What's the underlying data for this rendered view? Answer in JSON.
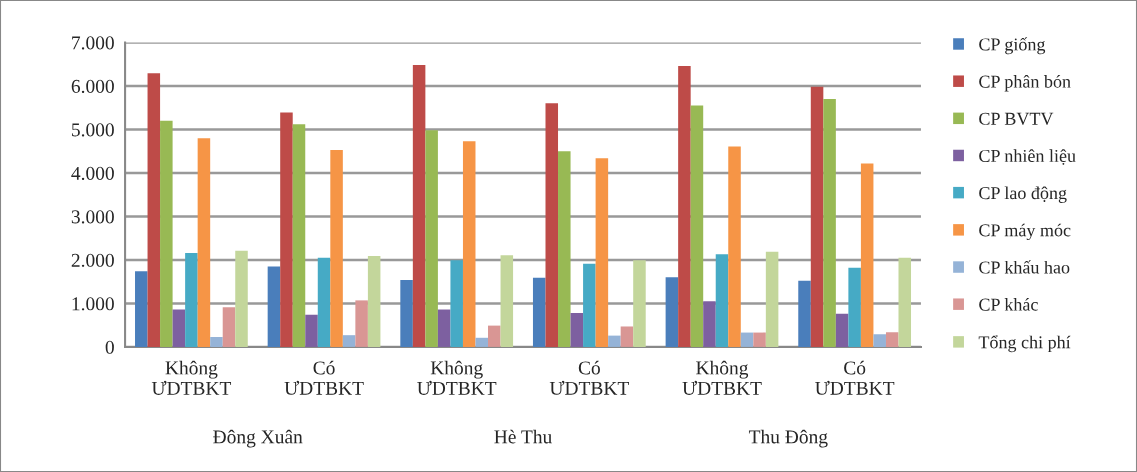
{
  "chart_data": {
    "type": "bar",
    "categories": [
      "Không\nƯDTBKT",
      "Có\nƯDTBKT",
      "Không\nƯDTBKT",
      "Có\nƯDTBKT",
      "Không\nƯDTBKT",
      "Có\nƯDTBKT"
    ],
    "annotations": [
      "Đông Xuân",
      "Hè Thu",
      "Thu Đông"
    ],
    "series": [
      {
        "name": "CP giống",
        "color": "#4a7ebb",
        "values": [
          1740,
          1850,
          1540,
          1590,
          1600,
          1520
        ]
      },
      {
        "name": "CP phân bón",
        "color": "#be4b48",
        "values": [
          6290,
          5390,
          6480,
          5600,
          6460,
          5980
        ]
      },
      {
        "name": "CP BVTV",
        "color": "#98b954",
        "values": [
          5200,
          5120,
          4980,
          4500,
          5550,
          5700
        ]
      },
      {
        "name": "CP nhiên liệu",
        "color": "#7d60a0",
        "values": [
          860,
          740,
          860,
          780,
          1050,
          760
        ]
      },
      {
        "name": "CP lao động",
        "color": "#46aac5",
        "values": [
          2160,
          2050,
          1990,
          1910,
          2130,
          1820
        ]
      },
      {
        "name": "CP máy móc",
        "color": "#f69546",
        "values": [
          4800,
          4530,
          4730,
          4340,
          4610,
          4220
        ]
      },
      {
        "name": "CP khấu hao",
        "color": "#95b3d7",
        "values": [
          230,
          270,
          210,
          260,
          330,
          290
        ]
      },
      {
        "name": "CP khác",
        "color": "#d99694",
        "values": [
          910,
          1070,
          490,
          470,
          330,
          340
        ]
      },
      {
        "name": "Tổng chi phí",
        "color": "#c3d69b",
        "values": [
          2210,
          2090,
          2110,
          1990,
          2190,
          2050
        ]
      }
    ],
    "ylim": [
      0,
      7000
    ],
    "yticks": [
      {
        "value": 0,
        "label": "0"
      },
      {
        "value": 1000,
        "label": "1.000"
      },
      {
        "value": 2000,
        "label": "2.000"
      },
      {
        "value": 3000,
        "label": "3.000"
      },
      {
        "value": 4000,
        "label": "4.000"
      },
      {
        "value": 5000,
        "label": "5.000"
      },
      {
        "value": 6000,
        "label": "6.000"
      },
      {
        "value": 7000,
        "label": "7.000"
      }
    ],
    "grid": "y",
    "legend": "right"
  }
}
